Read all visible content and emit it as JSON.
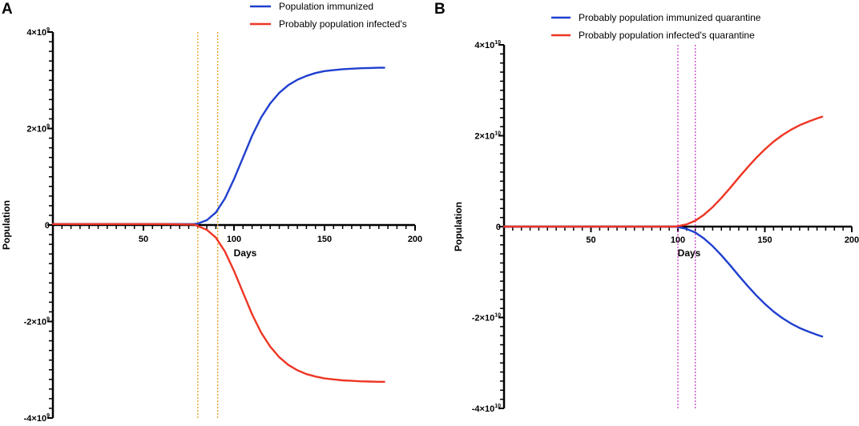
{
  "chart_data": [
    {
      "panel": "A",
      "type": "line",
      "title": "",
      "xlabel": "Days",
      "ylabel": "Population",
      "xlim": [
        0,
        200
      ],
      "ylim": [
        -4000000000,
        4000000000
      ],
      "x_ticks": [
        {
          "value": 50,
          "label": "50"
        },
        {
          "value": 100,
          "label": "100"
        },
        {
          "value": 150,
          "label": "150"
        },
        {
          "value": 200,
          "label": "200"
        }
      ],
      "y_ticks": [
        {
          "value": 4000000000,
          "base": "4×10",
          "exp": "9"
        },
        {
          "value": 2000000000,
          "base": "2×10",
          "exp": "9"
        },
        {
          "value": 0,
          "base": "0",
          "exp": ""
        },
        {
          "value": -2000000000,
          "base": "-2×10",
          "exp": "9"
        },
        {
          "value": -4000000000,
          "base": "-4×10",
          "exp": "9"
        }
      ],
      "vertical_lines": [
        {
          "x": 80,
          "color": "#e8a020"
        },
        {
          "x": 91,
          "color": "#e8a020"
        }
      ],
      "series": [
        {
          "name": "Population immunized",
          "color": "#1f3fcf",
          "x": [
            0,
            20,
            40,
            60,
            78,
            80,
            85,
            90,
            95,
            100,
            105,
            110,
            115,
            120,
            125,
            130,
            135,
            140,
            145,
            150,
            155,
            160,
            165,
            170,
            175,
            180,
            183
          ],
          "y": [
            20000000,
            20000000,
            20000000,
            20000000,
            20000000,
            30000000,
            100000000,
            260000000,
            550000000,
            950000000,
            1400000000,
            1850000000,
            2230000000,
            2520000000,
            2740000000,
            2900000000,
            3010000000,
            3090000000,
            3150000000,
            3190000000,
            3210000000,
            3230000000,
            3240000000,
            3250000000,
            3255000000,
            3260000000,
            3260000000
          ]
        },
        {
          "name": "Probably population infected's",
          "color": "#ee3524",
          "x": [
            0,
            20,
            40,
            60,
            78,
            80,
            85,
            90,
            95,
            100,
            105,
            110,
            115,
            120,
            125,
            130,
            135,
            140,
            145,
            150,
            155,
            160,
            165,
            170,
            175,
            180,
            183
          ],
          "y": [
            20000000,
            20000000,
            20000000,
            20000000,
            10000000,
            -20000000,
            -100000000,
            -260000000,
            -550000000,
            -950000000,
            -1400000000,
            -1850000000,
            -2230000000,
            -2520000000,
            -2740000000,
            -2900000000,
            -3010000000,
            -3090000000,
            -3140000000,
            -3180000000,
            -3200000000,
            -3220000000,
            -3230000000,
            -3240000000,
            -3245000000,
            -3250000000,
            -3250000000
          ]
        }
      ]
    },
    {
      "panel": "B",
      "type": "line",
      "title": "",
      "xlabel": "Days",
      "ylabel": "Population",
      "xlim": [
        0,
        200
      ],
      "ylim": [
        -40000000000,
        40000000000
      ],
      "x_ticks": [
        {
          "value": 50,
          "label": "50"
        },
        {
          "value": 100,
          "label": "100"
        },
        {
          "value": 150,
          "label": "150"
        },
        {
          "value": 200,
          "label": "200"
        }
      ],
      "y_ticks": [
        {
          "value": 40000000000,
          "base": "4×10",
          "exp": "10"
        },
        {
          "value": 20000000000,
          "base": "2×10",
          "exp": "10"
        },
        {
          "value": 0,
          "base": "0",
          "exp": ""
        },
        {
          "value": -20000000000,
          "base": "-2×10",
          "exp": "10"
        },
        {
          "value": -40000000000,
          "base": "-4×10",
          "exp": "10"
        }
      ],
      "vertical_lines": [
        {
          "x": 100,
          "color": "#cc44cc"
        },
        {
          "x": 110,
          "color": "#cc44cc"
        }
      ],
      "series": [
        {
          "name": "Probably population immunized quarantine",
          "color": "#1f3fcf",
          "x": [
            0,
            50,
            98,
            100,
            105,
            110,
            115,
            120,
            125,
            130,
            135,
            140,
            145,
            150,
            155,
            160,
            165,
            170,
            175,
            180,
            183
          ],
          "y": [
            0,
            0,
            0,
            -100000000,
            -500000000,
            -1300000000,
            -2600000000,
            -4300000000,
            -6300000000,
            -8500000000,
            -10800000000,
            -13000000000,
            -15100000000,
            -17000000000,
            -18700000000,
            -20100000000,
            -21300000000,
            -22300000000,
            -23100000000,
            -23800000000,
            -24200000000
          ]
        },
        {
          "name": "Probably population infected's quarantine",
          "color": "#ee3524",
          "x": [
            0,
            50,
            98,
            100,
            105,
            110,
            115,
            120,
            125,
            130,
            135,
            140,
            145,
            150,
            155,
            160,
            165,
            170,
            175,
            180,
            183
          ],
          "y": [
            0,
            0,
            0,
            100000000,
            500000000,
            1300000000,
            2600000000,
            4300000000,
            6300000000,
            8500000000,
            10800000000,
            13000000000,
            15100000000,
            17000000000,
            18700000000,
            20100000000,
            21300000000,
            22300000000,
            23100000000,
            23800000000,
            24200000000
          ]
        }
      ]
    }
  ]
}
